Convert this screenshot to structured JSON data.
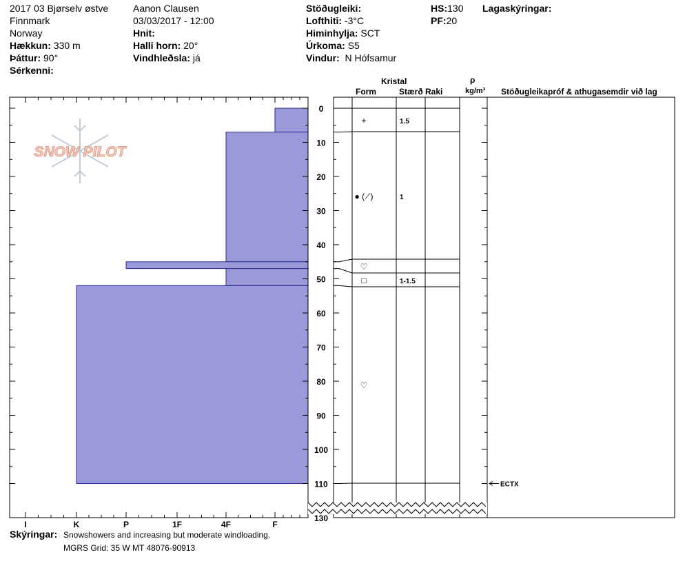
{
  "header": {
    "col1": {
      "location": "2017 03 Bjørselv østve",
      "region": "Finnmark",
      "country": "Norway",
      "elevation_label": "Hækkun:",
      "elevation_value": "330 m",
      "aspect_label": "Þáttur:",
      "aspect_value": "90°",
      "features_label": "Sérkenni:"
    },
    "col2": {
      "observer": "Aanon Clausen",
      "datetime": "03/03/2017 - 12:00",
      "coords_label": "Hnit:",
      "slope_label": "Halli horn:",
      "slope_value": "20°",
      "wind_loading_label": "Vindhleðsla:",
      "wind_loading_value": "já"
    },
    "col3": {
      "stability_label": "Stöðugleiki:",
      "air_temp_label": "Lofthiti:",
      "air_temp_value": "-3°C",
      "sky_label": "Himinhylja:",
      "sky_value": "SCT",
      "precip_label": "Úrkoma:",
      "precip_value": "S5",
      "wind_label": "Vindur:",
      "wind_value": "N Hófsamur"
    },
    "col4": {
      "hs_label": "HS:",
      "hs_value": "130",
      "pf_label": "PF:",
      "pf_value": "20"
    },
    "col5": {
      "layers_label": "Lagaskýringar:"
    }
  },
  "logo": {
    "text": "SNOW PILOT",
    "icon": "snowflake-icon"
  },
  "hardness_axis": {
    "ticks": [
      "I",
      "K",
      "P",
      "1F",
      "4F",
      "F"
    ]
  },
  "depth_axis": {
    "ticks": [
      "0",
      "10",
      "20",
      "30",
      "40",
      "50",
      "60",
      "70",
      "80",
      "90",
      "100",
      "110",
      "130"
    ],
    "max": 130
  },
  "columns": {
    "kristal": "Kristal",
    "form": "Form",
    "size": "Stærð",
    "moisture": "Raki",
    "density_symbol": "ρ",
    "density_unit": "kg/m³",
    "tests": "Stöðugleikapróf & athugasemdir við lag"
  },
  "layers": [
    {
      "top": 0,
      "bottom": 7,
      "hardness": "F",
      "form_symbol": "+",
      "size": "1.5"
    },
    {
      "top": 7,
      "bottom": 45,
      "hardness": "4F",
      "form_symbol": "● (⟋)",
      "size": "1"
    },
    {
      "top": 45,
      "bottom": 47,
      "hardness": "P",
      "form_symbol": "♡",
      "size": ""
    },
    {
      "top": 47,
      "bottom": 52,
      "hardness": "4F",
      "form_symbol": "□",
      "size": "1-1.5"
    },
    {
      "top": 52,
      "bottom": 110,
      "hardness": "K",
      "form_symbol": "♡",
      "size": ""
    }
  ],
  "tests": [
    {
      "depth": 110,
      "label": "ECTX"
    }
  ],
  "footer": {
    "notes_label": "Skýringar:",
    "notes_value": "Snowshowers and increasing but moderate windloading.",
    "mgrs": "MGRS Grid: 35 W MT 48076-90913"
  },
  "colors": {
    "layer_fill": "#9b9ad8",
    "layer_stroke": "#2a2a9a",
    "logo": "#e8a890"
  }
}
